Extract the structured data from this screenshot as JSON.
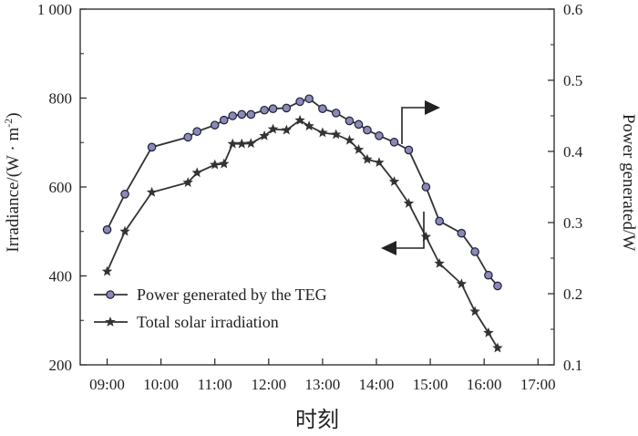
{
  "chart_data": {
    "type": "line",
    "xlabel": "时刻",
    "ylabel_left": "Irradiance/(W · m",
    "ylabel_left_sup": "-2",
    "ylabel_left_close": ")",
    "ylabel_right": "Power generated/W",
    "x_ticks": [
      "09:00",
      "10:00",
      "11:00",
      "12:00",
      "13:00",
      "14:00",
      "15:00",
      "16:00",
      "17:00"
    ],
    "x_tick_values": [
      9,
      10,
      11,
      12,
      13,
      14,
      15,
      16,
      17
    ],
    "xlim": [
      8.5,
      17.3
    ],
    "y_left_ticks": [
      "200",
      "400",
      "600",
      "800",
      "1 000"
    ],
    "y_left_tick_values": [
      200,
      400,
      600,
      800,
      1000
    ],
    "ylim_left": [
      200,
      1000
    ],
    "y_right_ticks": [
      "0.1",
      "0.2",
      "0.3",
      "0.4",
      "0.5",
      "0.6"
    ],
    "y_right_tick_values": [
      0.1,
      0.2,
      0.3,
      0.4,
      0.5,
      0.6
    ],
    "ylim_right": [
      0.1,
      0.6
    ],
    "series": [
      {
        "name": "Power generated by the TEG",
        "axis": "right",
        "marker": "circle",
        "x": [
          9.0,
          9.33,
          9.83,
          10.5,
          10.67,
          11.0,
          11.17,
          11.33,
          11.5,
          11.67,
          11.92,
          12.08,
          12.33,
          12.58,
          12.75,
          13.0,
          13.25,
          13.5,
          13.67,
          13.83,
          14.05,
          14.33,
          14.6,
          14.92,
          15.17,
          15.58,
          15.83,
          16.08,
          16.25
        ],
        "y": [
          0.29,
          0.34,
          0.406,
          0.42,
          0.428,
          0.437,
          0.444,
          0.45,
          0.452,
          0.452,
          0.458,
          0.46,
          0.461,
          0.47,
          0.474,
          0.46,
          0.454,
          0.443,
          0.438,
          0.43,
          0.422,
          0.413,
          0.402,
          0.35,
          0.302,
          0.285,
          0.259,
          0.226,
          0.211
        ]
      },
      {
        "name": "Total solar irradiation",
        "axis": "left",
        "marker": "star",
        "x": [
          9.0,
          9.33,
          9.83,
          10.5,
          10.67,
          11.0,
          11.17,
          11.33,
          11.5,
          11.67,
          11.92,
          12.08,
          12.33,
          12.58,
          12.75,
          13.0,
          13.25,
          13.5,
          13.67,
          13.83,
          14.05,
          14.33,
          14.6,
          14.92,
          15.17,
          15.58,
          15.83,
          16.08,
          16.25
        ],
        "y": [
          410,
          500,
          588,
          610,
          632,
          650,
          652,
          697,
          697,
          698,
          715,
          730,
          728,
          750,
          737,
          722,
          718,
          705,
          684,
          662,
          655,
          612,
          563,
          488,
          428,
          382,
          320,
          272,
          238
        ]
      }
    ],
    "annotations": [
      {
        "type": "arrow",
        "direction": "right",
        "target_axis": "right"
      },
      {
        "type": "arrow",
        "direction": "left",
        "target_axis": "left"
      }
    ],
    "legend": {
      "placement": "bottom-left",
      "entries": [
        "Power generated by the TEG",
        "Total solar irradiation"
      ]
    },
    "colors": {
      "line": "#333333",
      "circle_fill": "#8a8ab4",
      "circle_stroke": "#1e1e3c",
      "star_fill": "#333333"
    }
  }
}
